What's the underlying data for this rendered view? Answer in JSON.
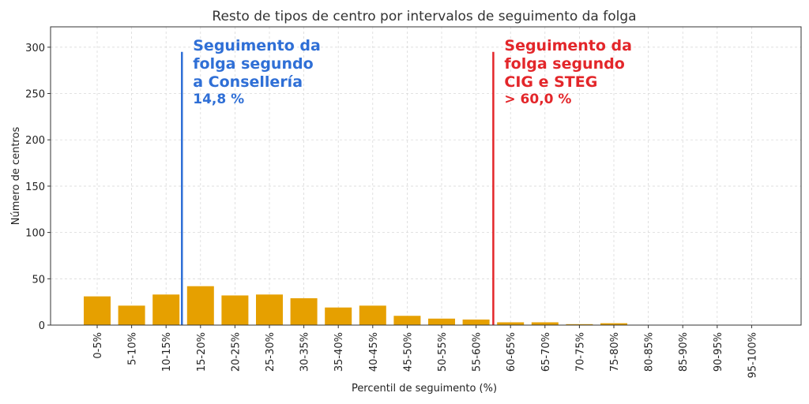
{
  "chart_data": {
    "type": "bar",
    "title": "Resto de tipos de centro por intervalos de seguimento da folga",
    "xlabel": "Percentil de seguimento (%)",
    "ylabel": "Número de centros",
    "categories": [
      "0-5%",
      "5-10%",
      "10-15%",
      "15-20%",
      "20-25%",
      "25-30%",
      "30-35%",
      "35-40%",
      "40-45%",
      "45-50%",
      "50-55%",
      "55-60%",
      "60-65%",
      "65-70%",
      "70-75%",
      "75-80%",
      "80-85%",
      "85-90%",
      "90-95%",
      "95-100%"
    ],
    "values": [
      31,
      21,
      33,
      42,
      32,
      33,
      29,
      19,
      21,
      10,
      7,
      6,
      3,
      3,
      1,
      2,
      0,
      0,
      0,
      0
    ],
    "ylim": [
      0,
      322
    ],
    "yticks": [
      0,
      50,
      100,
      150,
      200,
      250,
      300
    ],
    "bar_color": "#e6a000",
    "grid": true,
    "annotations": [
      {
        "name": "conselleria",
        "x_value": 14.8,
        "line_top": 295,
        "color": "#2f6fd6",
        "lines": [
          "Seguimento da",
          "folga segundo",
          "a Consellería"
        ],
        "value_text": "14,8 %"
      },
      {
        "name": "cig-steg",
        "x_value": 60.0,
        "line_top": 295,
        "color": "#e3262a",
        "lines": [
          "Seguimento da",
          "folga segundo",
          "CIG e STEG"
        ],
        "value_text": "> 60,0 %"
      }
    ]
  }
}
